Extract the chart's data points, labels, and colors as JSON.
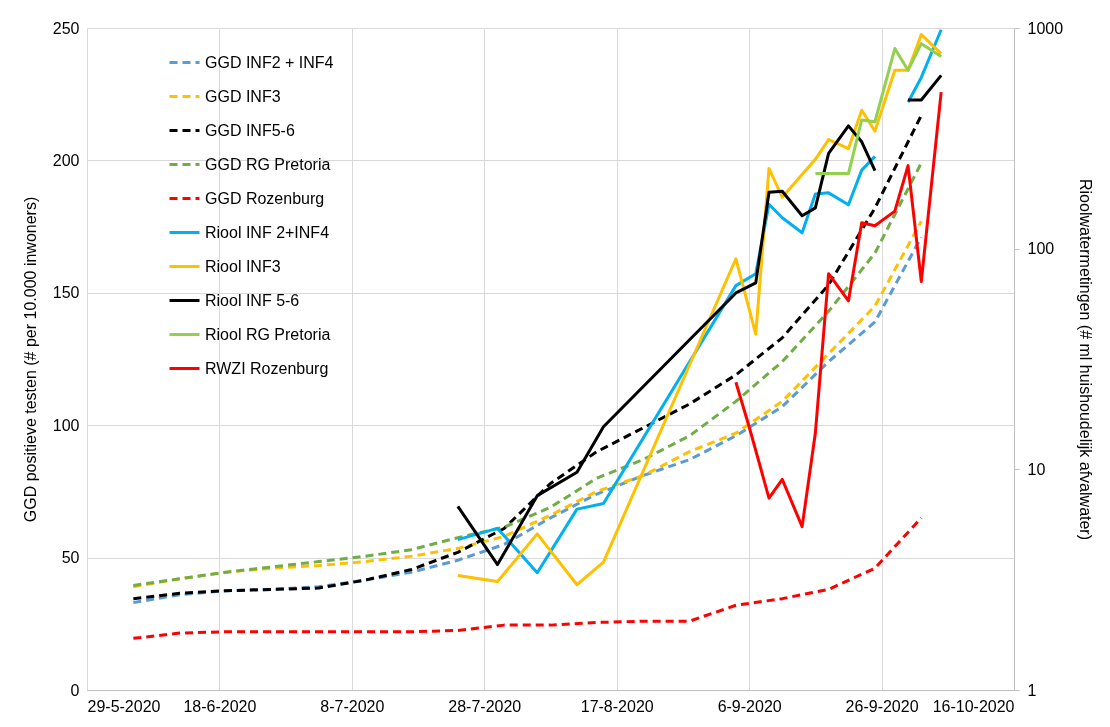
{
  "chart_data": {
    "type": "line",
    "ylabel": "GGD positieve testen (# per 10.000 inwoners)",
    "y2label": "Rioolwatermetingen (# ml huishoudelijk afvalwater)",
    "xlim": [
      "2020-05-29",
      "2020-10-16"
    ],
    "xticks": [
      {
        "value": "2020-05-29",
        "label": "29-5-2020"
      },
      {
        "value": "2020-06-18",
        "label": "18-6-2020"
      },
      {
        "value": "2020-07-08",
        "label": "8-7-2020"
      },
      {
        "value": "2020-07-28",
        "label": "28-7-2020"
      },
      {
        "value": "2020-08-17",
        "label": "17-8-2020"
      },
      {
        "value": "2020-09-06",
        "label": "6-9-2020"
      },
      {
        "value": "2020-09-26",
        "label": "26-9-2020"
      },
      {
        "value": "2020-10-16",
        "label": "16-10-2020"
      }
    ],
    "ylim": [
      0,
      250
    ],
    "yticks": [
      0,
      50,
      100,
      150,
      200,
      250
    ],
    "y2lim": [
      1,
      1000
    ],
    "y2ticks": [
      1,
      10,
      100,
      1000
    ],
    "log": "y2",
    "grid": true,
    "legend": "top left",
    "series": [
      {
        "name": "GGD INF2 + INF4",
        "color": "#5b9bd5",
        "line_style": "dashed",
        "x": [
          "2020-06-05",
          "2020-06-12",
          "2020-06-19",
          "2020-06-26",
          "2020-07-03",
          "2020-07-10",
          "2020-07-17",
          "2020-07-24",
          "2020-07-31",
          "2020-08-07",
          "2020-08-14",
          "2020-08-21",
          "2020-08-28",
          "2020-09-04",
          "2020-09-11",
          "2020-09-18",
          "2020-09-25",
          "2020-10-02"
        ],
        "values": [
          33,
          36,
          37.5,
          38,
          39,
          41.5,
          44.5,
          49,
          55,
          65,
          74,
          81,
          87,
          96,
          107,
          124,
          139,
          171
        ]
      },
      {
        "name": "GGD INF3",
        "color": "#ffc000",
        "line_style": "dashed",
        "x": [
          "2020-06-05",
          "2020-06-12",
          "2020-06-19",
          "2020-06-26",
          "2020-07-03",
          "2020-07-10",
          "2020-07-17",
          "2020-07-24",
          "2020-07-31",
          "2020-08-07",
          "2020-08-14",
          "2020-08-21",
          "2020-08-28",
          "2020-09-04",
          "2020-09-11",
          "2020-09-18",
          "2020-09-25",
          "2020-10-02"
        ],
        "values": [
          39,
          42,
          44.5,
          46,
          47,
          48.5,
          50.5,
          53.5,
          58,
          66,
          75,
          81,
          90,
          97,
          109,
          127,
          145,
          177
        ]
      },
      {
        "name": "GGD INF5-6",
        "color": "#000000",
        "line_style": "dashed",
        "x": [
          "2020-06-05",
          "2020-06-12",
          "2020-06-19",
          "2020-06-26",
          "2020-07-03",
          "2020-07-10",
          "2020-07-17",
          "2020-07-24",
          "2020-07-31",
          "2020-08-07",
          "2020-08-14",
          "2020-08-21",
          "2020-08-28",
          "2020-09-04",
          "2020-09-11",
          "2020-09-18",
          "2020-09-25",
          "2020-10-02"
        ],
        "values": [
          34.5,
          36.5,
          37.5,
          38,
          38.5,
          41.5,
          45.5,
          52,
          61,
          78,
          90,
          99,
          108,
          119,
          133,
          153,
          182,
          217
        ]
      },
      {
        "name": "GGD RG Pretoria",
        "color": "#70ad47",
        "line_style": "dashed",
        "x": [
          "2020-06-05",
          "2020-06-12",
          "2020-06-19",
          "2020-06-26",
          "2020-07-03",
          "2020-07-10",
          "2020-07-17",
          "2020-07-24",
          "2020-07-31",
          "2020-08-07",
          "2020-08-14",
          "2020-08-21",
          "2020-08-28",
          "2020-09-04",
          "2020-09-11",
          "2020-09-18",
          "2020-09-25",
          "2020-10-02"
        ],
        "values": [
          39.5,
          42,
          44.5,
          46.5,
          48.5,
          50.5,
          53,
          57.5,
          61.5,
          69,
          80,
          87,
          96,
          109,
          124,
          143,
          165,
          199
        ]
      },
      {
        "name": "GGD Rozenburg",
        "color": "#ff0000",
        "line_style": "dashed",
        "x": [
          "2020-06-05",
          "2020-06-12",
          "2020-06-19",
          "2020-06-26",
          "2020-07-03",
          "2020-07-10",
          "2020-07-17",
          "2020-07-24",
          "2020-07-31",
          "2020-08-07",
          "2020-08-14",
          "2020-08-21",
          "2020-08-28",
          "2020-09-04",
          "2020-09-11",
          "2020-09-18",
          "2020-09-25",
          "2020-10-02"
        ],
        "values": [
          19.5,
          21.5,
          22,
          22,
          22,
          22,
          22,
          22.5,
          24.5,
          24.5,
          25.5,
          26,
          26,
          32,
          34.5,
          38,
          46,
          65
        ]
      },
      {
        "name": "Riool INF 2+INF4",
        "color": "#00b0f0",
        "line_style": "solid",
        "axis": "y2",
        "x": [
          "2020-07-24",
          "2020-07-30",
          "2020-08-05",
          "2020-08-11",
          "2020-08-15",
          "2020-09-04",
          "2020-09-07",
          "2020-09-09",
          "2020-09-11",
          "2020-09-14",
          "2020-09-16",
          "2020-09-18",
          "2020-09-21",
          "2020-09-23",
          "2020-09-25",
          "2020-09-28",
          "2020-09-30",
          "2020-10-02",
          "2020-10-05"
        ],
        "values": [
          4.8,
          5.4,
          3.4,
          6.6,
          7,
          68,
          77,
          159,
          138,
          118,
          177,
          179,
          158,
          227,
          262,
          null,
          461,
          597,
          982
        ]
      },
      {
        "name": "Riool INF3",
        "color": "#ffc000",
        "line_style": "solid",
        "axis": "y2",
        "x": [
          "2020-07-24",
          "2020-07-30",
          "2020-08-05",
          "2020-08-11",
          "2020-08-15",
          "2020-09-04",
          "2020-09-07",
          "2020-09-09",
          "2020-09-11",
          "2020-09-16",
          "2020-09-18",
          "2020-09-21",
          "2020-09-23",
          "2020-09-25",
          "2020-09-28",
          "2020-09-30",
          "2020-10-02",
          "2020-10-05"
        ],
        "values": [
          3.3,
          3.1,
          5.1,
          3.0,
          3.8,
          90,
          41,
          231,
          171,
          254,
          312,
          284,
          424,
          341,
          644,
          644,
          933,
          766
        ]
      },
      {
        "name": "Riool INF 5-6",
        "color": "#000000",
        "line_style": "solid",
        "axis": "y2",
        "x": [
          "2020-07-24",
          "2020-07-30",
          "2020-08-05",
          "2020-08-11",
          "2020-08-15",
          "2020-09-04",
          "2020-09-07",
          "2020-09-09",
          "2020-09-11",
          "2020-09-14",
          "2020-09-16",
          "2020-09-18",
          "2020-09-21",
          "2020-09-23",
          "2020-09-25",
          "2020-09-28",
          "2020-09-30",
          "2020-10-02",
          "2020-10-05"
        ],
        "values": [
          6.8,
          3.7,
          7.6,
          9.7,
          15.6,
          63,
          70,
          180,
          182,
          141,
          153,
          270,
          360,
          305,
          226,
          null,
          472,
          472,
          610
        ]
      },
      {
        "name": "Riool RG Pretoria",
        "color": "#92d050",
        "line_style": "solid",
        "axis": "y2",
        "x": [
          "2020-09-16",
          "2020-09-21",
          "2020-09-23",
          "2020-09-25",
          "2020-09-28",
          "2020-09-30",
          "2020-10-02",
          "2020-10-05"
        ],
        "values": [
          219,
          219,
          383,
          376,
          807,
          644,
          849,
          743
        ]
      },
      {
        "name": "RWZI Rozenburg",
        "color": "#ff0000",
        "line_style": "solid",
        "axis": "y2",
        "x": [
          "2020-09-04",
          "2020-09-06",
          "2020-09-09",
          "2020-09-11",
          "2020-09-14",
          "2020-09-16",
          "2020-09-18",
          "2020-09-21",
          "2020-09-23",
          "2020-09-25",
          "2020-09-28",
          "2020-09-30",
          "2020-10-02",
          "2020-10-05"
        ],
        "values": [
          24.8,
          15.6,
          7.4,
          9.0,
          5.5,
          14.6,
          77,
          58,
          131,
          127,
          148,
          238,
          71,
          512
        ]
      }
    ]
  }
}
